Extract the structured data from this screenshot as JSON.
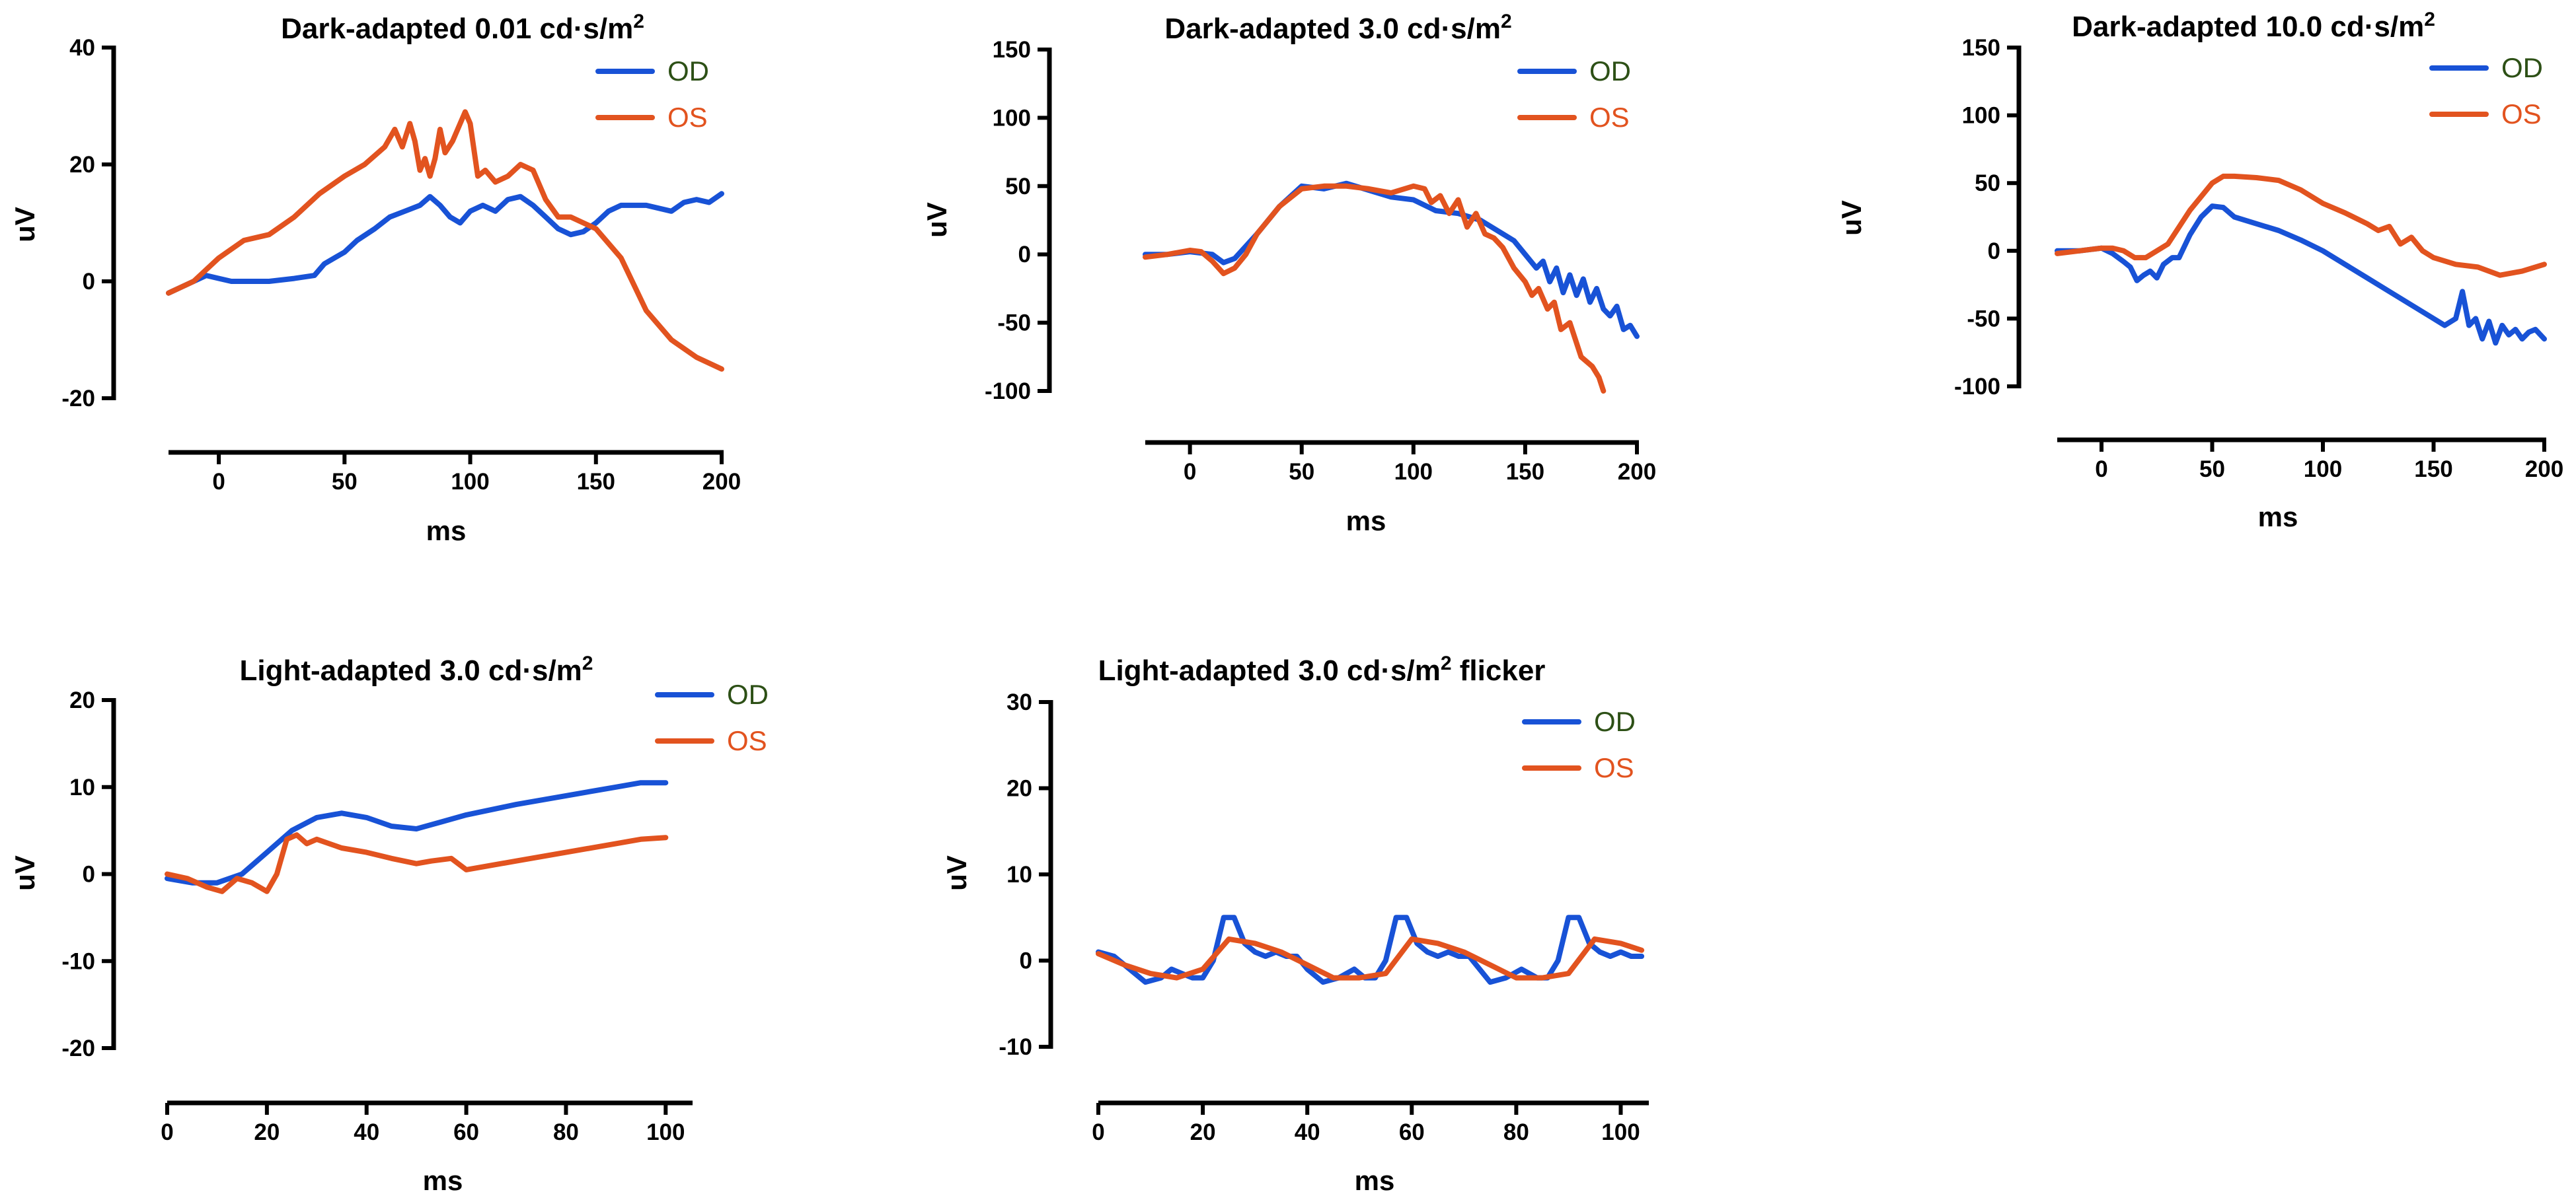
{
  "colors": {
    "od": "#1852d6",
    "os": "#e2531f",
    "legend_text_od": "#2d5016",
    "legend_text_os": "#e2531f",
    "axis": "#000000"
  },
  "chart_data": [
    {
      "type": "line",
      "title": "Dark-adapted 0.01 cd·s/m",
      "title_sup": "2",
      "title_suffix": "",
      "xlabel": "ms",
      "ylabel": "uV",
      "xlim": [
        -20,
        200
      ],
      "ylim": [
        -20,
        40
      ],
      "xticks": [
        0,
        50,
        100,
        150,
        200
      ],
      "yticks": [
        -20,
        0,
        20,
        40
      ],
      "legend": [
        "OD",
        "OS"
      ],
      "series": [
        {
          "name": "OD",
          "x": [
            -20,
            -10,
            -5,
            0,
            5,
            10,
            20,
            30,
            38,
            42,
            46,
            50,
            55,
            62,
            68,
            74,
            80,
            84,
            88,
            92,
            96,
            100,
            105,
            110,
            115,
            120,
            125,
            130,
            135,
            140,
            145,
            150,
            155,
            160,
            170,
            180,
            185,
            190,
            195,
            200
          ],
          "y": [
            -2,
            0,
            1,
            0.5,
            0,
            0,
            0,
            0.5,
            1,
            3,
            4,
            5,
            7,
            9,
            11,
            12,
            13,
            14.5,
            13,
            11,
            10,
            12,
            13,
            12,
            14,
            14.5,
            13,
            11,
            9,
            8,
            8.5,
            10,
            12,
            13,
            13,
            12,
            13.5,
            14,
            13.5,
            15
          ]
        },
        {
          "name": "OS",
          "x": [
            -20,
            -10,
            0,
            10,
            20,
            30,
            40,
            50,
            58,
            66,
            70,
            73,
            76,
            78,
            80,
            82,
            84,
            86,
            88,
            90,
            93,
            96,
            98,
            100,
            103,
            106,
            110,
            115,
            120,
            125,
            130,
            135,
            140,
            150,
            160,
            170,
            180,
            190,
            200
          ],
          "y": [
            -2,
            0,
            4,
            7,
            8,
            11,
            15,
            18,
            20,
            23,
            26,
            23,
            27,
            24,
            19,
            21,
            18,
            21,
            26,
            22,
            24,
            27,
            29,
            27,
            18,
            19,
            17,
            18,
            20,
            19,
            14,
            11,
            11,
            9,
            4,
            -5,
            -10,
            -13,
            -15
          ]
        }
      ]
    },
    {
      "type": "line",
      "title": "Dark-adapted 3.0 cd·s/m",
      "title_sup": "2",
      "title_suffix": "",
      "xlabel": "ms",
      "ylabel": "uV",
      "xlim": [
        -20,
        200
      ],
      "ylim": [
        -100,
        150
      ],
      "xticks": [
        0,
        50,
        100,
        150,
        200
      ],
      "yticks": [
        -100,
        -50,
        0,
        50,
        100,
        150
      ],
      "legend": [
        "OD",
        "OS"
      ],
      "series": [
        {
          "name": "OD",
          "x": [
            -20,
            -10,
            0,
            10,
            15,
            20,
            30,
            40,
            50,
            60,
            70,
            80,
            90,
            100,
            110,
            120,
            130,
            140,
            145,
            150,
            155,
            158,
            161,
            164,
            167,
            170,
            173,
            176,
            179,
            182,
            185,
            188,
            191,
            194,
            197,
            200
          ],
          "y": [
            0,
            0,
            2,
            0,
            -6,
            -3,
            15,
            35,
            50,
            48,
            52,
            47,
            42,
            40,
            32,
            30,
            25,
            15,
            10,
            0,
            -10,
            -5,
            -20,
            -10,
            -28,
            -15,
            -30,
            -18,
            -35,
            -25,
            -40,
            -45,
            -38,
            -55,
            -52,
            -60
          ]
        },
        {
          "name": "OS",
          "x": [
            -20,
            -10,
            0,
            5,
            10,
            15,
            20,
            25,
            30,
            40,
            50,
            60,
            70,
            80,
            90,
            100,
            105,
            108,
            112,
            116,
            120,
            124,
            128,
            132,
            136,
            140,
            145,
            150,
            153,
            156,
            160,
            163,
            166,
            170,
            175,
            180,
            183,
            185
          ],
          "y": [
            -2,
            0,
            3,
            2,
            -5,
            -14,
            -10,
            0,
            15,
            35,
            48,
            50,
            50,
            48,
            45,
            50,
            48,
            38,
            43,
            30,
            40,
            20,
            30,
            15,
            12,
            5,
            -10,
            -20,
            -30,
            -25,
            -40,
            -35,
            -55,
            -50,
            -75,
            -82,
            -90,
            -100
          ]
        }
      ]
    },
    {
      "type": "line",
      "title": "Dark-adapted 10.0 cd·s/m",
      "title_sup": "2",
      "title_suffix": "",
      "xlabel": "ms",
      "ylabel": "uV",
      "xlim": [
        -20,
        200
      ],
      "ylim": [
        -100,
        150
      ],
      "xticks": [
        0,
        50,
        100,
        150,
        200
      ],
      "yticks": [
        -100,
        -50,
        0,
        50,
        100,
        150
      ],
      "legend": [
        "OD",
        "OS"
      ],
      "series": [
        {
          "name": "OD",
          "x": [
            -20,
            -10,
            0,
            5,
            10,
            13,
            16,
            19,
            22,
            25,
            28,
            32,
            35,
            40,
            45,
            50,
            55,
            60,
            70,
            80,
            90,
            100,
            110,
            120,
            130,
            140,
            150,
            155,
            160,
            163,
            166,
            169,
            172,
            175,
            178,
            181,
            184,
            187,
            190,
            193,
            196,
            200
          ],
          "y": [
            0,
            0,
            2,
            -2,
            -8,
            -12,
            -22,
            -18,
            -15,
            -20,
            -10,
            -5,
            -5,
            12,
            25,
            33,
            32,
            25,
            20,
            15,
            8,
            0,
            -10,
            -20,
            -30,
            -40,
            -50,
            -55,
            -50,
            -30,
            -55,
            -50,
            -65,
            -52,
            -68,
            -55,
            -62,
            -58,
            -65,
            -60,
            -58,
            -65
          ]
        },
        {
          "name": "OS",
          "x": [
            -20,
            -10,
            0,
            5,
            10,
            15,
            20,
            30,
            40,
            50,
            55,
            60,
            70,
            80,
            90,
            100,
            110,
            120,
            125,
            130,
            135,
            140,
            145,
            150,
            160,
            170,
            180,
            190,
            200
          ],
          "y": [
            -2,
            0,
            2,
            2,
            0,
            -5,
            -5,
            5,
            30,
            50,
            55,
            55,
            54,
            52,
            45,
            35,
            28,
            20,
            15,
            18,
            5,
            10,
            0,
            -5,
            -10,
            -12,
            -18,
            -15,
            -10
          ]
        }
      ]
    },
    {
      "type": "line",
      "title": "Light-adapted 3.0 cd·s/m",
      "title_sup": "2",
      "title_suffix": "",
      "xlabel": "ms",
      "ylabel": "uV",
      "xlim": [
        0,
        105
      ],
      "ylim": [
        -20,
        20
      ],
      "xticks": [
        0,
        20,
        40,
        60,
        80,
        100
      ],
      "yticks": [
        -20,
        -10,
        0,
        10,
        20
      ],
      "legend": [
        "OD",
        "OS"
      ],
      "series": [
        {
          "name": "OD",
          "x": [
            0,
            5,
            10,
            15,
            20,
            25,
            30,
            35,
            40,
            45,
            50,
            55,
            60,
            70,
            80,
            90,
            95,
            100
          ],
          "y": [
            -0.5,
            -1,
            -1,
            0,
            2.5,
            5,
            6.5,
            7,
            6.5,
            5.5,
            5.2,
            6,
            6.8,
            8,
            9,
            10,
            10.5,
            10.5
          ]
        },
        {
          "name": "OS",
          "x": [
            0,
            4,
            8,
            11,
            14,
            17,
            20,
            22,
            24,
            26,
            28,
            30,
            35,
            40,
            45,
            50,
            53,
            57,
            60,
            70,
            80,
            90,
            95,
            100
          ],
          "y": [
            0,
            -0.5,
            -1.5,
            -2,
            -0.5,
            -1,
            -2,
            0,
            4,
            4.5,
            3.5,
            4,
            3,
            2.5,
            1.8,
            1.2,
            1.5,
            1.8,
            0.5,
            1.5,
            2.5,
            3.5,
            4,
            4.2
          ]
        }
      ]
    },
    {
      "type": "line",
      "title": "Light-adapted 3.0 cd·s/m",
      "title_sup": "2",
      "title_suffix": " flicker",
      "xlabel": "ms",
      "ylabel": "uV",
      "xlim": [
        0,
        105
      ],
      "ylim": [
        -10,
        30
      ],
      "xticks": [
        0,
        20,
        40,
        60,
        80,
        100
      ],
      "yticks": [
        -10,
        0,
        10,
        20,
        30
      ],
      "legend": [
        "OD",
        "OS"
      ],
      "series": [
        {
          "name": "OD",
          "x": [
            0,
            3,
            6,
            9,
            12,
            14,
            16,
            18,
            20,
            22,
            24,
            26,
            28,
            30,
            32,
            34,
            36,
            38,
            40,
            43,
            46,
            49,
            51,
            53,
            55,
            57,
            59,
            61,
            63,
            65,
            67,
            69,
            71,
            73,
            75,
            78,
            81,
            84,
            86,
            88,
            90,
            92,
            94,
            96,
            98,
            100,
            102,
            104
          ],
          "y": [
            1,
            0.5,
            -1,
            -2.5,
            -2,
            -1,
            -1.5,
            -2,
            -2,
            0,
            5,
            5,
            2,
            1,
            0.5,
            1,
            0.5,
            0.5,
            -1,
            -2.5,
            -2,
            -1,
            -2,
            -2,
            0,
            5,
            5,
            2,
            1,
            0.5,
            1,
            0.5,
            0.5,
            -1,
            -2.5,
            -2,
            -1,
            -2,
            -2,
            0,
            5,
            5,
            2,
            1,
            0.5,
            1,
            0.5,
            0.5
          ]
        },
        {
          "name": "OS",
          "x": [
            0,
            5,
            10,
            15,
            20,
            25,
            30,
            35,
            40,
            45,
            50,
            55,
            60,
            65,
            70,
            75,
            80,
            85,
            90,
            95,
            100,
            104
          ],
          "y": [
            0.8,
            -0.5,
            -1.5,
            -2,
            -1,
            2.5,
            2,
            1,
            -0.5,
            -2,
            -2,
            -1.5,
            2.5,
            2,
            1,
            -0.5,
            -2,
            -2,
            -1.5,
            2.5,
            2,
            1.2
          ]
        }
      ]
    }
  ]
}
